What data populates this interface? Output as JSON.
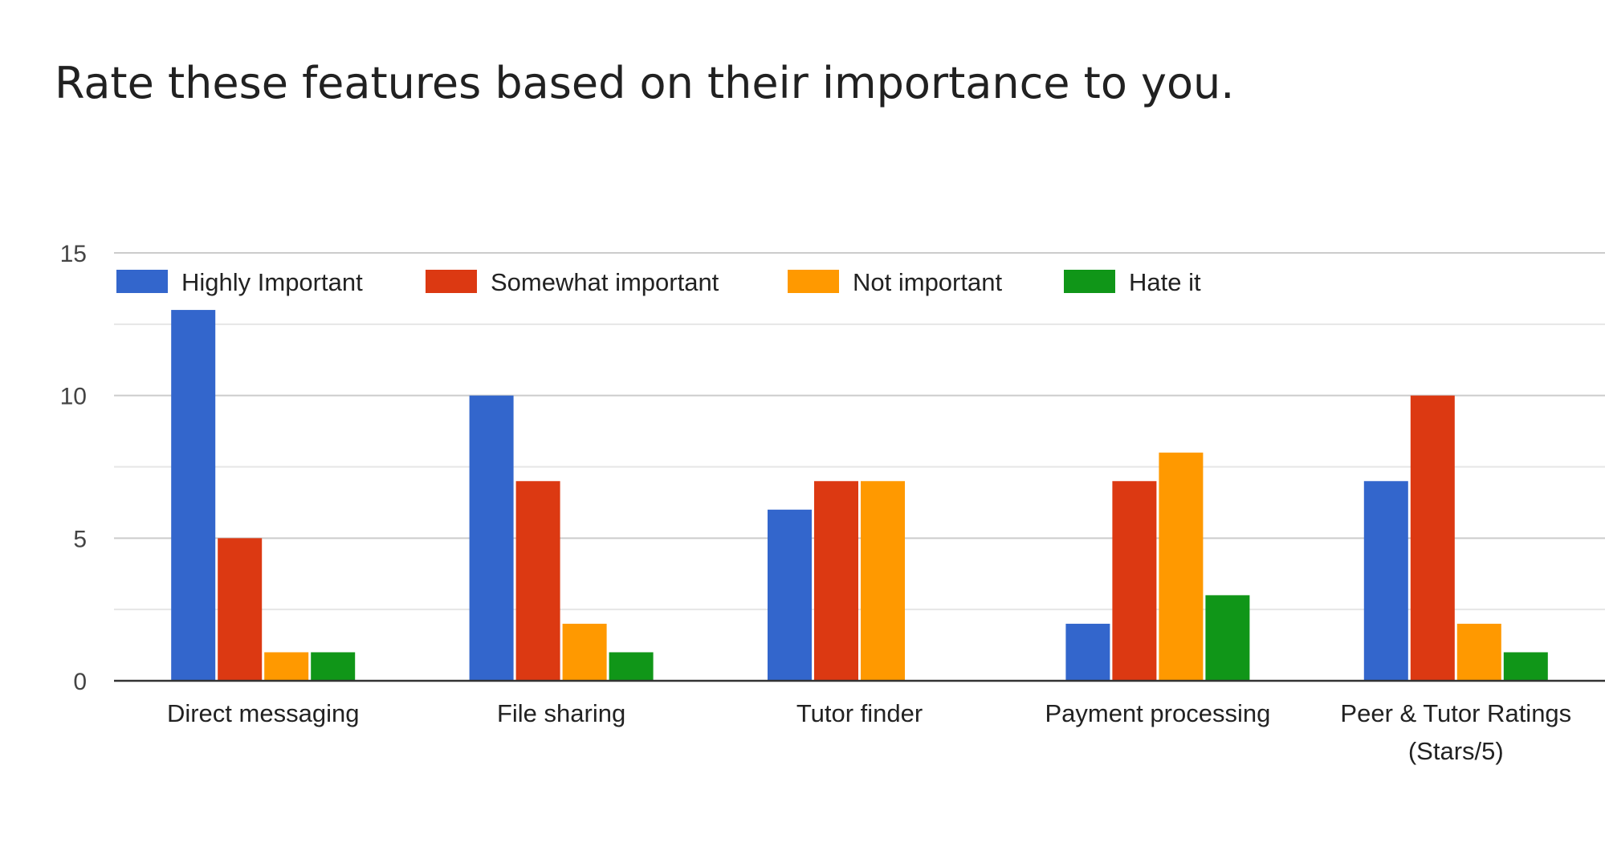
{
  "chart_data": {
    "type": "bar",
    "title": "Rate these features based on their importance to you.",
    "categories": [
      [
        "Direct messaging"
      ],
      [
        "File sharing"
      ],
      [
        "Tutor finder"
      ],
      [
        "Payment processing"
      ],
      [
        "Peer & Tutor Ratings",
        "(Stars/5)"
      ]
    ],
    "series": [
      {
        "name": "Highly Important",
        "color": "#3366cc",
        "values": [
          13,
          10,
          6,
          2,
          7
        ]
      },
      {
        "name": "Somewhat important",
        "color": "#dc3912",
        "values": [
          5,
          7,
          7,
          7,
          10
        ]
      },
      {
        "name": "Not important",
        "color": "#ff9900",
        "values": [
          1,
          2,
          7,
          8,
          2
        ]
      },
      {
        "name": "Hate it",
        "color": "#109618",
        "values": [
          1,
          1,
          0,
          3,
          1
        ]
      }
    ],
    "ylim": [
      0,
      15
    ],
    "yticks": [
      0,
      5,
      10,
      15
    ],
    "grid": true,
    "legend": "top-left",
    "xlabel": "",
    "ylabel": ""
  }
}
